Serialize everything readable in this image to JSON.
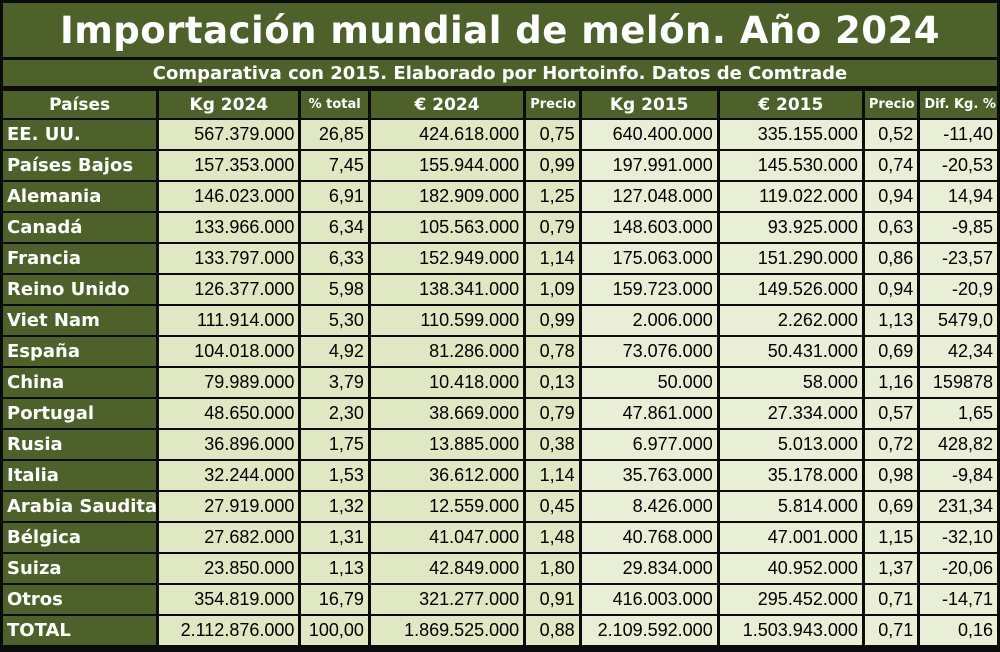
{
  "title": "Importación mundial de melón. Año 2024",
  "subtitle": "Comparativa con 2015. Elaborado por Hortoinfo. Datos de Comtrade",
  "headers": [
    "Países",
    "Kg 2024",
    "% total",
    "€ 2024",
    "Precio",
    "Kg 2015",
    "€ 2015",
    "Precio",
    "Dif. Kg. %"
  ],
  "rows": [
    [
      "EE. UU.",
      "567.379.000",
      "26,85",
      "424.618.000",
      "0,75",
      "640.400.000",
      "335.155.000",
      "0,52",
      "-11,40"
    ],
    [
      "Países Bajos",
      "157.353.000",
      "7,45",
      "155.944.000",
      "0,99",
      "197.991.000",
      "145.530.000",
      "0,74",
      "-20,53"
    ],
    [
      "Alemania",
      "146.023.000",
      "6,91",
      "182.909.000",
      "1,25",
      "127.048.000",
      "119.022.000",
      "0,94",
      "14,94"
    ],
    [
      "Canadá",
      "133.966.000",
      "6,34",
      "105.563.000",
      "0,79",
      "148.603.000",
      "93.925.000",
      "0,63",
      "-9,85"
    ],
    [
      "Francia",
      "133.797.000",
      "6,33",
      "152.949.000",
      "1,14",
      "175.063.000",
      "151.290.000",
      "0,86",
      "-23,57"
    ],
    [
      "Reino Unido",
      "126.377.000",
      "5,98",
      "138.341.000",
      "1,09",
      "159.723.000",
      "149.526.000",
      "0,94",
      "-20,9"
    ],
    [
      "Viet Nam",
      "111.914.000",
      "5,30",
      "110.599.000",
      "0,99",
      "2.006.000",
      "2.262.000",
      "1,13",
      "5479,0"
    ],
    [
      "España",
      "104.018.000",
      "4,92",
      "81.286.000",
      "0,78",
      "73.076.000",
      "50.431.000",
      "0,69",
      "42,34"
    ],
    [
      "China",
      "79.989.000",
      "3,79",
      "10.418.000",
      "0,13",
      "50.000",
      "58.000",
      "1,16",
      "159878"
    ],
    [
      "Portugal",
      "48.650.000",
      "2,30",
      "38.669.000",
      "0,79",
      "47.861.000",
      "27.334.000",
      "0,57",
      "1,65"
    ],
    [
      "Rusia",
      "36.896.000",
      "1,75",
      "13.885.000",
      "0,38",
      "6.977.000",
      "5.013.000",
      "0,72",
      "428,82"
    ],
    [
      "Italia",
      "32.244.000",
      "1,53",
      "36.612.000",
      "1,14",
      "35.763.000",
      "35.178.000",
      "0,98",
      "-9,84"
    ],
    [
      "Arabia Saudita",
      "27.919.000",
      "1,32",
      "12.559.000",
      "0,45",
      "8.426.000",
      "5.814.000",
      "0,69",
      "231,34"
    ],
    [
      "Bélgica",
      "27.682.000",
      "1,31",
      "41.047.000",
      "1,48",
      "40.768.000",
      "47.001.000",
      "1,15",
      "-32,10"
    ],
    [
      "Suiza",
      "23.850.000",
      "1,13",
      "42.849.000",
      "1,80",
      "29.834.000",
      "40.952.000",
      "1,37",
      "-20,06"
    ],
    [
      "Otros",
      "354.819.000",
      "16,79",
      "321.277.000",
      "0,91",
      "416.003.000",
      "295.452.000",
      "0,71",
      "-14,71"
    ],
    [
      "TOTAL",
      "2.112.876.000",
      "100,00",
      "1.869.525.000",
      "0,88",
      "2.109.592.000",
      "1.503.943.000",
      "0,71",
      "0,16"
    ]
  ]
}
